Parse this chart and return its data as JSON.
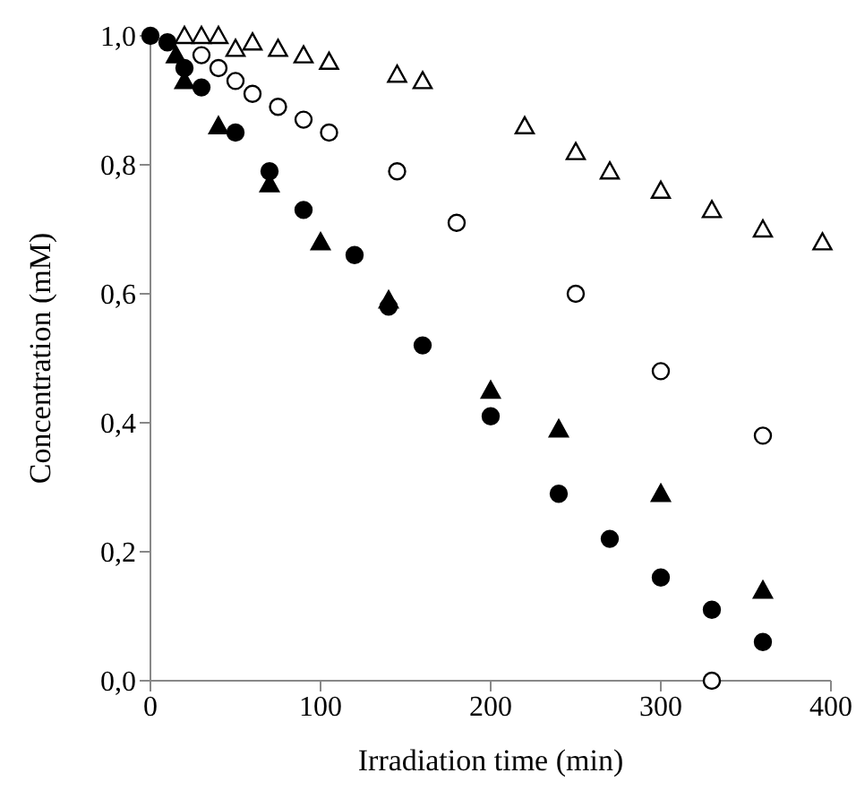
{
  "chart_data": {
    "type": "scatter",
    "xlabel": "Irradiation time (min)",
    "ylabel": "Concentration (mM)",
    "xlim": [
      0,
      400
    ],
    "xticks": [
      0,
      100,
      200,
      300,
      400
    ],
    "ylim": [
      0,
      1
    ],
    "yticks": [
      {
        "value": 0,
        "label": "0,0"
      },
      {
        "value": 0.2,
        "label": "0,2"
      },
      {
        "value": 0.4,
        "label": "0,4"
      },
      {
        "value": 0.6,
        "label": "0,6"
      },
      {
        "value": 0.8,
        "label": "0,8"
      },
      {
        "value": 1,
        "label": "1,0"
      }
    ],
    "grid": false,
    "legend": false,
    "series": [
      {
        "marker": "triangle",
        "color": "#ffffff",
        "x": [
          20,
          30,
          40,
          50,
          60,
          75,
          90,
          105,
          145,
          160,
          220,
          250,
          270,
          300,
          330,
          360,
          395
        ],
        "values": [
          1.0,
          1.0,
          1.0,
          0.98,
          0.99,
          0.98,
          0.97,
          0.96,
          0.94,
          0.93,
          0.86,
          0.82,
          0.79,
          0.76,
          0.73,
          0.7,
          0.68
        ]
      },
      {
        "marker": "circle",
        "color": "#ffffff",
        "x": [
          30,
          40,
          50,
          60,
          75,
          90,
          105,
          145,
          180,
          250,
          300,
          330,
          360
        ],
        "values": [
          0.97,
          0.95,
          0.93,
          0.91,
          0.89,
          0.87,
          0.85,
          0.79,
          0.71,
          0.6,
          0.48,
          0.0,
          0.38
        ]
      },
      {
        "marker": "circle",
        "color": "#000000",
        "x": [
          0,
          10,
          20,
          30,
          50,
          70,
          90,
          120,
          140,
          160,
          200,
          240,
          270,
          300,
          330,
          360
        ],
        "values": [
          1.0,
          0.99,
          0.95,
          0.92,
          0.85,
          0.79,
          0.73,
          0.66,
          0.58,
          0.52,
          0.41,
          0.29,
          0.22,
          0.16,
          0.11,
          0.06
        ]
      },
      {
        "marker": "triangle",
        "color": "#000000",
        "x": [
          15,
          20,
          40,
          70,
          100,
          140,
          200,
          240,
          300,
          360
        ],
        "values": [
          0.97,
          0.93,
          0.86,
          0.77,
          0.68,
          0.59,
          0.45,
          0.39,
          0.29,
          0.14
        ]
      }
    ]
  }
}
